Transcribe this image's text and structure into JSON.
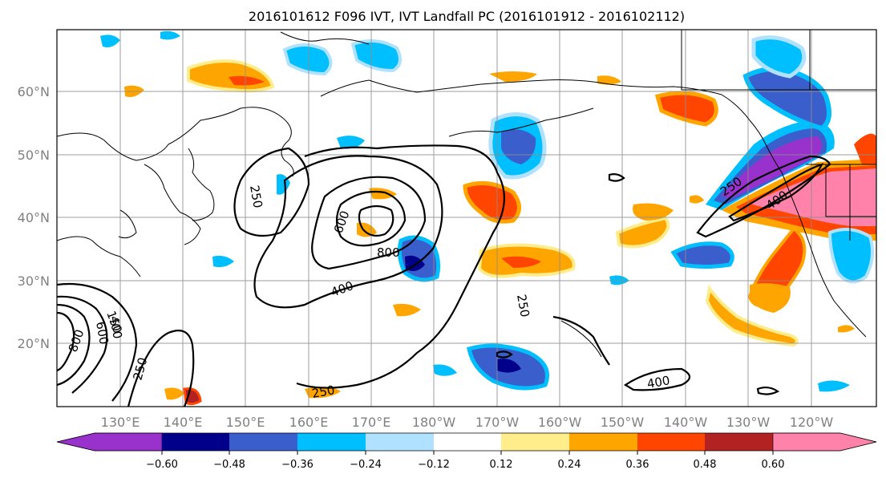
{
  "title": "2016101612 F096 IVT, IVT Landfall PC (2016101912 - 2016102112)",
  "lat_labels": [
    "60°N",
    "50°N",
    "40°N",
    "30°N",
    "20°N"
  ],
  "lon_labels": [
    "130°E",
    "140°E",
    "150°E",
    "160°E",
    "170°E",
    "180°W",
    "170°W",
    "160°W",
    "150°W",
    "140°W",
    "130°W",
    "120°W"
  ],
  "colorbar": {
    "colors": [
      "#9932cc",
      "#00008b",
      "#3a5fcd",
      "#00bfff",
      "#b0e2ff",
      "#ffffff",
      "#ffec8b",
      "#ffa500",
      "#ff4500",
      "#b22222",
      "#ff82ab"
    ],
    "tick_labels": [
      "−0.60",
      "−0.48",
      "−0.36",
      "−0.24",
      "−0.12",
      "0.12",
      "0.24",
      "0.36",
      "0.48",
      "0.60"
    ]
  },
  "contour_labels": [
    "250",
    "600",
    "800",
    "400",
    "250",
    "150",
    "600",
    "800",
    "400",
    "250",
    "250",
    "250",
    "400",
    "400"
  ]
}
